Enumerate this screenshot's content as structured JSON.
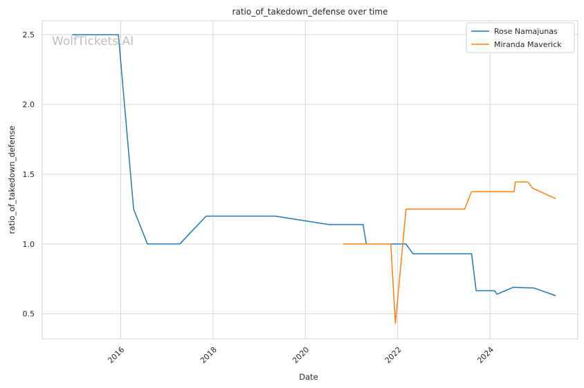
{
  "chart_data": {
    "type": "line",
    "title": "ratio_of_takedown_defense over time",
    "xlabel": "Date",
    "ylabel": "ratio_of_takedown_defense",
    "watermark": "WolfTickets.AI",
    "xlim": [
      2014.3,
      2025.9
    ],
    "ylim": [
      0.32,
      2.6
    ],
    "x_ticks": [
      2016,
      2018,
      2020,
      2022,
      2024
    ],
    "x_tick_labels": [
      "2016",
      "2018",
      "2020",
      "2022",
      "2024"
    ],
    "y_ticks": [
      0.5,
      1.0,
      1.5,
      2.0,
      2.5
    ],
    "y_tick_labels": [
      "0.5",
      "1.0",
      "1.5",
      "2.0",
      "2.5"
    ],
    "grid": true,
    "legend_position": "top-right",
    "series": [
      {
        "name": "Rose Namajunas",
        "color": "#1f77b4",
        "x": [
          2014.95,
          2015.95,
          2016.28,
          2016.58,
          2017.28,
          2017.85,
          2019.35,
          2020.5,
          2021.25,
          2021.32,
          2022.18,
          2022.33,
          2023.6,
          2023.7,
          2024.1,
          2024.15,
          2024.5,
          2024.95,
          2025.42
        ],
        "y": [
          2.5,
          2.5,
          1.25,
          1.0,
          1.0,
          1.2,
          1.2,
          1.14,
          1.14,
          1.0,
          1.0,
          0.93,
          0.93,
          0.665,
          0.665,
          0.64,
          0.69,
          0.685,
          0.63
        ]
      },
      {
        "name": "Miranda Maverick",
        "color": "#ff7f0e",
        "x": [
          2020.82,
          2021.85,
          2021.95,
          2022.18,
          2023.45,
          2023.6,
          2024.52,
          2024.55,
          2024.82,
          2024.92,
          2025.42
        ],
        "y": [
          1.0,
          1.0,
          0.43,
          1.25,
          1.25,
          1.375,
          1.375,
          1.445,
          1.445,
          1.4,
          1.325
        ]
      }
    ]
  }
}
